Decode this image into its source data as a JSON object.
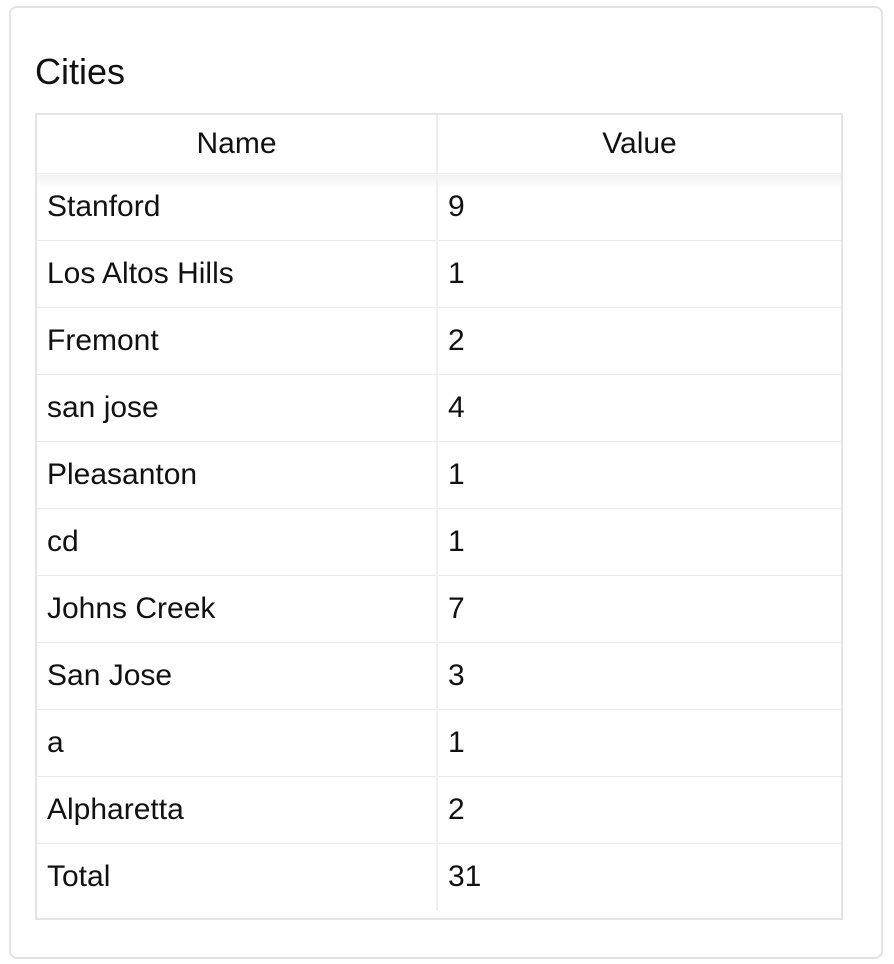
{
  "card": {
    "title": "Cities"
  },
  "table": {
    "columns": [
      "Name",
      "Value"
    ],
    "rows": [
      {
        "name": "Stanford",
        "value": "9"
      },
      {
        "name": "Los Altos Hills",
        "value": "1"
      },
      {
        "name": "Fremont",
        "value": "2"
      },
      {
        "name": "san jose",
        "value": "4"
      },
      {
        "name": "Pleasanton",
        "value": "1"
      },
      {
        "name": "cd",
        "value": "1"
      },
      {
        "name": "Johns Creek",
        "value": "7"
      },
      {
        "name": "San Jose",
        "value": "3"
      },
      {
        "name": "a",
        "value": "1"
      },
      {
        "name": "Alpharetta",
        "value": "2"
      },
      {
        "name": "Total",
        "value": "31"
      }
    ]
  }
}
